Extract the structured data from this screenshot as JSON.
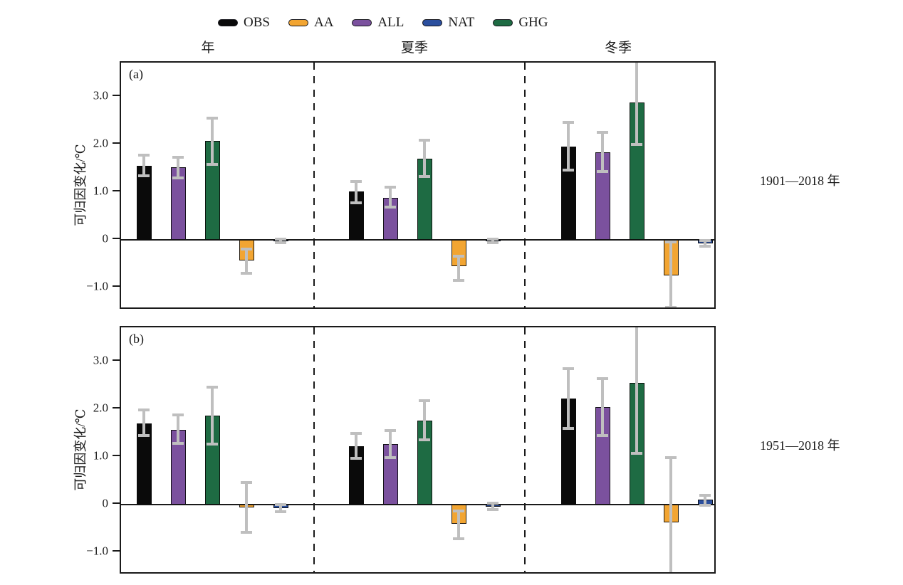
{
  "figure": {
    "background": "#ffffff",
    "text_color": "#1a1a1a"
  },
  "legend": {
    "position": "top",
    "items": [
      {
        "label": "OBS",
        "color": "#0a0a0a"
      },
      {
        "label": "AA",
        "color": "#F2A532"
      },
      {
        "label": "ALL",
        "color": "#7B519E"
      },
      {
        "label": "NAT",
        "color": "#2B4F9E"
      },
      {
        "label": "GHG",
        "color": "#1E6B43"
      }
    ]
  },
  "chart_data": {
    "type": "bar",
    "title": "",
    "ylabel": "可归因变化/℃",
    "group_labels": [
      "年",
      "夏季",
      "冬季"
    ],
    "series_order": [
      "OBS",
      "ALL",
      "GHG",
      "AA",
      "NAT"
    ],
    "ylim": [
      -1.48,
      3.72
    ],
    "yticks": [
      3.0,
      2.0,
      1.0,
      0,
      -1.0
    ],
    "ytick_labels": [
      "3.0",
      "2.0",
      "1.0",
      "0",
      "−1.0"
    ],
    "grid": false,
    "error_bar_color": "#BFBFBF",
    "panels": [
      {
        "label": "(a)",
        "period": "1901—2018 年",
        "groups": [
          {
            "name": "年",
            "bars": [
              {
                "series": "OBS",
                "value": 1.55,
                "lo": 1.34,
                "hi": 1.78
              },
              {
                "series": "ALL",
                "value": 1.52,
                "lo": 1.3,
                "hi": 1.74
              },
              {
                "series": "GHG",
                "value": 2.07,
                "lo": 1.58,
                "hi": 2.55
              },
              {
                "series": "AA",
                "value": -0.43,
                "lo": -0.7,
                "hi": -0.2
              },
              {
                "series": "NAT",
                "value": -0.02,
                "lo": -0.06,
                "hi": 0.02
              }
            ]
          },
          {
            "name": "夏季",
            "bars": [
              {
                "series": "OBS",
                "value": 1.02,
                "lo": 0.78,
                "hi": 1.22
              },
              {
                "series": "ALL",
                "value": 0.88,
                "lo": 0.68,
                "hi": 1.1
              },
              {
                "series": "GHG",
                "value": 1.7,
                "lo": 1.33,
                "hi": 2.09
              },
              {
                "series": "AA",
                "value": -0.55,
                "lo": -0.85,
                "hi": -0.35
              },
              {
                "series": "NAT",
                "value": -0.02,
                "lo": -0.06,
                "hi": 0.02
              }
            ]
          },
          {
            "name": "冬季",
            "bars": [
              {
                "series": "OBS",
                "value": 1.95,
                "lo": 1.46,
                "hi": 2.47
              },
              {
                "series": "ALL",
                "value": 1.84,
                "lo": 1.43,
                "hi": 2.25
              },
              {
                "series": "GHG",
                "value": 2.88,
                "lo": 2.0,
                "hi": 3.95,
                "hi_clipped": true
              },
              {
                "series": "AA",
                "value": -0.75,
                "lo": -1.42,
                "hi": -0.05
              },
              {
                "series": "NAT",
                "value": -0.07,
                "lo": -0.13,
                "hi": -0.01
              }
            ]
          }
        ]
      },
      {
        "label": "(b)",
        "period": "1951—2018 年",
        "groups": [
          {
            "name": "年",
            "bars": [
              {
                "series": "OBS",
                "value": 1.7,
                "lo": 1.45,
                "hi": 1.98
              },
              {
                "series": "ALL",
                "value": 1.57,
                "lo": 1.28,
                "hi": 1.88
              },
              {
                "series": "GHG",
                "value": 1.86,
                "lo": 1.27,
                "hi": 2.46
              },
              {
                "series": "AA",
                "value": -0.06,
                "lo": -0.58,
                "hi": 0.47
              },
              {
                "series": "NAT",
                "value": -0.08,
                "lo": -0.15,
                "hi": 0.0
              }
            ]
          },
          {
            "name": "夏季",
            "bars": [
              {
                "series": "OBS",
                "value": 1.22,
                "lo": 0.97,
                "hi": 1.5
              },
              {
                "series": "ALL",
                "value": 1.27,
                "lo": 0.99,
                "hi": 1.55
              },
              {
                "series": "GHG",
                "value": 1.76,
                "lo": 1.36,
                "hi": 2.18
              },
              {
                "series": "AA",
                "value": -0.4,
                "lo": -0.72,
                "hi": -0.13
              },
              {
                "series": "NAT",
                "value": -0.04,
                "lo": -0.1,
                "hi": 0.03
              }
            ]
          },
          {
            "name": "冬季",
            "bars": [
              {
                "series": "OBS",
                "value": 2.23,
                "lo": 1.6,
                "hi": 2.86
              },
              {
                "series": "ALL",
                "value": 2.05,
                "lo": 1.45,
                "hi": 2.65
              },
              {
                "series": "GHG",
                "value": 2.55,
                "lo": 1.08,
                "hi": 3.95,
                "hi_clipped": true
              },
              {
                "series": "AA",
                "value": -0.38,
                "lo": -1.65,
                "hi": 0.98,
                "lo_clipped": true
              },
              {
                "series": "NAT",
                "value": 0.1,
                "lo": -0.02,
                "hi": 0.2
              }
            ]
          }
        ]
      }
    ]
  }
}
